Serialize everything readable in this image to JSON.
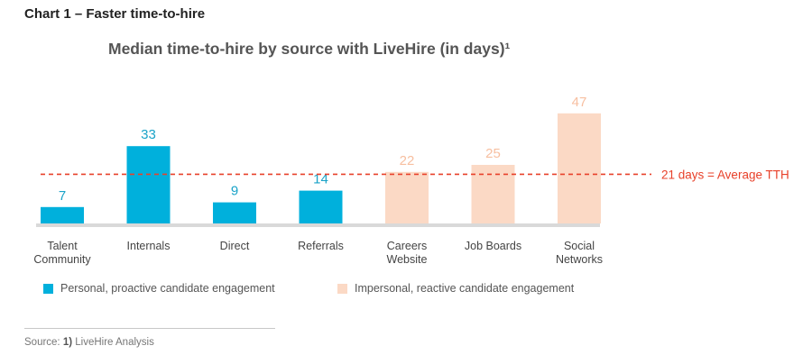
{
  "heading": "Chart 1 – Faster time-to-hire",
  "source": {
    "label": "Source: ",
    "ref": "1)",
    "text": " LiveHire Analysis"
  },
  "colors": {
    "personal": "#00b0dc",
    "impersonal": "#fbd9c5",
    "personal_label": "#1aa3c8",
    "impersonal_label": "#f7bfa0",
    "average_line": "#e8412a",
    "baseline": "#d9d9d9"
  },
  "chart_data": {
    "type": "bar",
    "title": "Median time-to-hire by source with LiveHire (in days)¹",
    "categories": [
      "Talent\nCommunity",
      "Internals",
      "Direct",
      "Referrals",
      "Careers\nWebsite",
      "Job Boards",
      "Social\nNetworks"
    ],
    "values": [
      7,
      33,
      9,
      14,
      22,
      25,
      47
    ],
    "groups": [
      "personal",
      "personal",
      "personal",
      "personal",
      "impersonal",
      "impersonal",
      "impersonal"
    ],
    "reference_line": {
      "value": 21,
      "label": "21 days = Average TTH"
    },
    "legend": [
      {
        "key": "personal",
        "label": "Personal, proactive candidate engagement"
      },
      {
        "key": "impersonal",
        "label": "Impersonal, reactive candidate engagement"
      }
    ],
    "grid": false
  }
}
